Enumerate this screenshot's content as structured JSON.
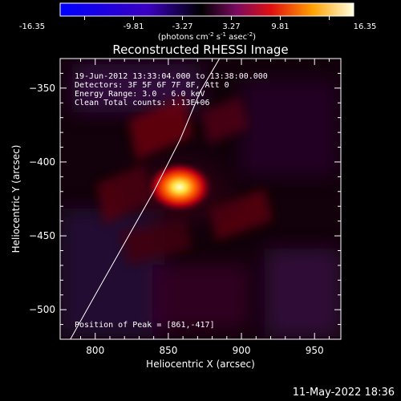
{
  "chart_data": {
    "type": "heatmap",
    "title": "Reconstructed RHESSI Image",
    "xlabel": "Heliocentric X (arcsec)",
    "ylabel": "Heliocentric Y (arcsec)",
    "xlim": [
      776,
      968
    ],
    "ylim": [
      -520,
      -330
    ],
    "x_ticks": [
      800,
      850,
      900,
      950
    ],
    "y_ticks": [
      -350,
      -400,
      -450,
      -500
    ],
    "colorbar": {
      "ticks": [
        "-16.35",
        "-9.81",
        "-3.27",
        "3.27",
        "9.81",
        "16.35"
      ],
      "unit_base": "(photons cm",
      "unit_exp1": "-2",
      "unit_mid1": " s",
      "unit_exp2": "-1",
      "unit_mid2": " asec",
      "unit_exp3": "-2",
      "unit_close": ")",
      "range": [
        -16.35,
        16.35
      ]
    },
    "annotations": {
      "time": "19-Jun-2012 13:33:04.000 to 13:38:00.000",
      "detectors": "Detectors: 3F 5F 6F 7F 8F, Att 0",
      "energy": "Energy Range: 3.0 - 6.0 keV",
      "clean": "Clean    Total counts: 1.13E+06",
      "peak": "Position of Peak = [861,-417]"
    },
    "peak": {
      "x": 861,
      "y": -417,
      "value": 16.35
    },
    "limb": [
      [
        783,
        -520
      ],
      [
        800,
        -490
      ],
      [
        820,
        -455
      ],
      [
        840,
        -420
      ],
      [
        858,
        -385
      ],
      [
        872,
        -352
      ],
      [
        885,
        -330
      ]
    ]
  },
  "footer": {
    "timestamp": "11-May-2022 18:36"
  }
}
